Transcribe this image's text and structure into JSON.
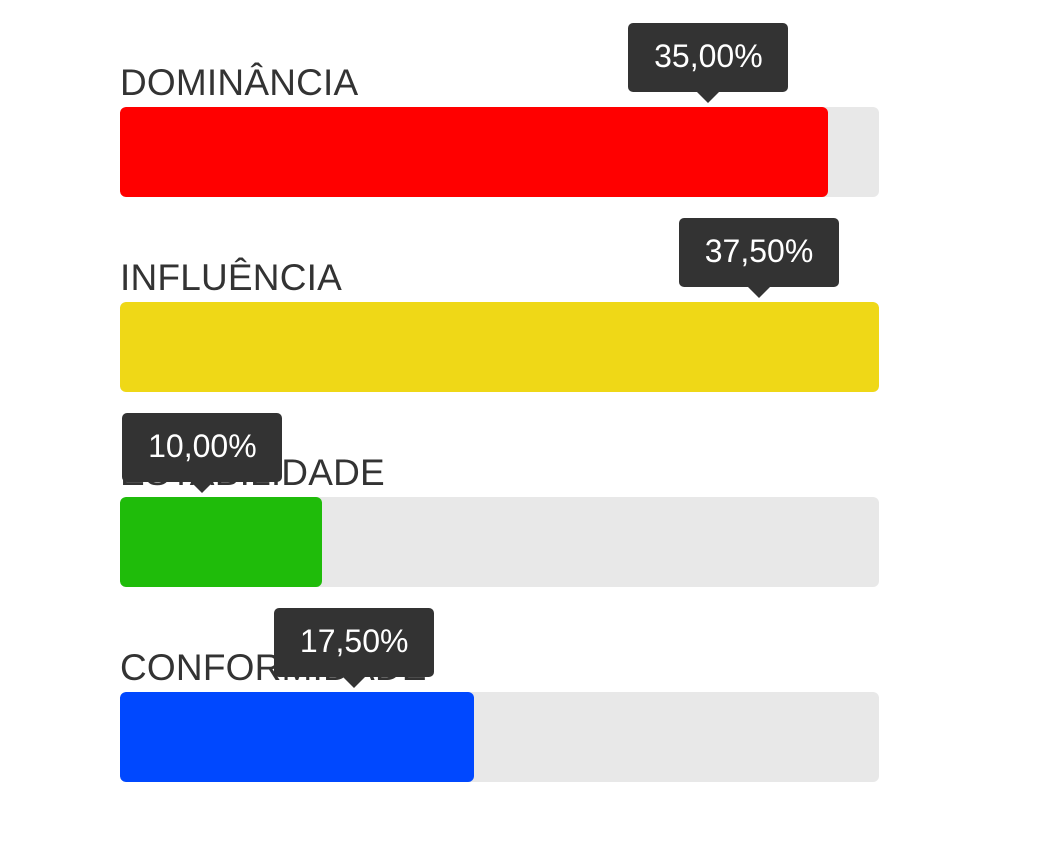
{
  "chart_data": {
    "type": "bar",
    "orientation": "horizontal",
    "scale_max_percent": 37.5,
    "categories": [
      "DOMINÂNCIA",
      "INFLUÊNCIA",
      "ESTABILIDADE",
      "CONFORMIDADE"
    ],
    "values": [
      35.0,
      37.5,
      10.0,
      17.5
    ],
    "value_labels": [
      "35,00%",
      "37,50%",
      "10,00%",
      "17,50%"
    ],
    "colors": [
      "#ff0000",
      "#efd817",
      "#1fbc0a",
      "#0048ff"
    ],
    "track_color": "#e8e8e8",
    "tooltip_color": "#333333"
  }
}
